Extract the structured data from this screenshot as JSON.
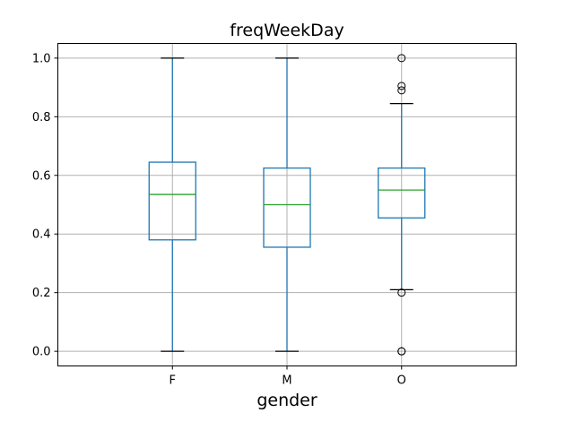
{
  "chart_data": {
    "type": "box",
    "title": "freqWeekDay",
    "xlabel": "gender",
    "ylabel": "",
    "ylim": [
      -0.05,
      1.05
    ],
    "y_ticks": [
      0.0,
      0.2,
      0.4,
      0.6,
      0.8,
      1.0
    ],
    "y_tick_labels": [
      "0.0",
      "0.2",
      "0.4",
      "0.6",
      "0.8",
      "1.0"
    ],
    "grid": true,
    "categories": [
      "F",
      "M",
      "O"
    ],
    "boxes": [
      {
        "category": "F",
        "whisker_low": 0.0,
        "q1": 0.38,
        "median": 0.535,
        "q3": 0.645,
        "whisker_high": 1.0,
        "outliers": []
      },
      {
        "category": "M",
        "whisker_low": 0.0,
        "q1": 0.355,
        "median": 0.5,
        "q3": 0.625,
        "whisker_high": 1.0,
        "outliers": []
      },
      {
        "category": "O",
        "whisker_low": 0.21,
        "q1": 0.455,
        "median": 0.55,
        "q3": 0.625,
        "whisker_high": 0.845,
        "outliers": [
          0.0,
          0.0,
          0.2,
          0.89,
          0.905,
          1.0
        ]
      }
    ],
    "colors": {
      "box": "#1f77b4",
      "median": "#2ca02c",
      "whisker": "#1f77b4",
      "cap": "#000000",
      "grid": "#b0b0b0",
      "outlier": "#000000"
    }
  }
}
